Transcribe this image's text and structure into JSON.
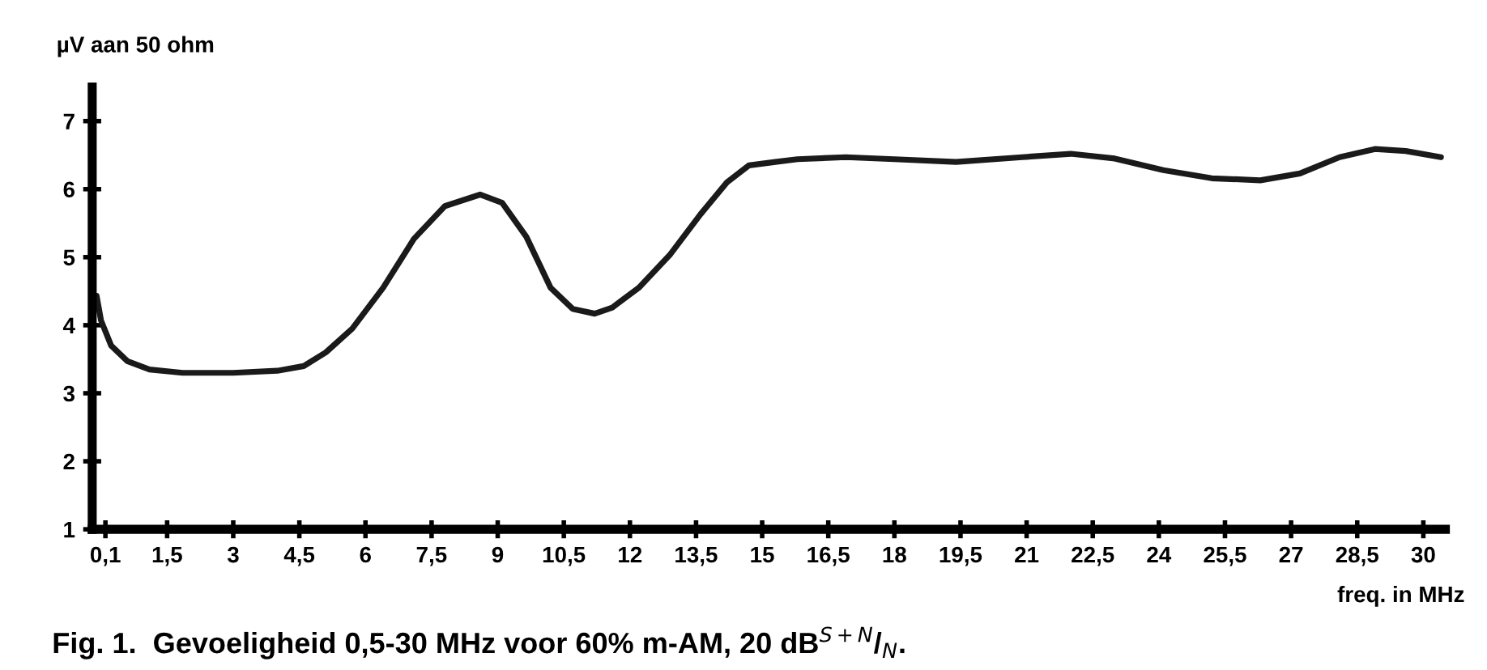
{
  "chart_data": {
    "type": "line",
    "title": "Fig. 1.  Gevoeligheid 0,5-30 MHz voor 60% m-AM, 20 dB$^{S+N}$/$_{N}$.",
    "ylabel": "µV aan 50 ohm",
    "xlabel": "freq. in MHz",
    "series": [
      {
        "color": "#1a1a1a",
        "x": [
          -0.1,
          0,
          0.23,
          0.6,
          1.1,
          1.85,
          3,
          4.0,
          4.6,
          5.1,
          5.7,
          6.4,
          7.1,
          7.8,
          8.6,
          9.1,
          9.65,
          10.2,
          10.7,
          11.2,
          11.6,
          12.2,
          12.9,
          13.6,
          14.2,
          14.7,
          15.3,
          15.8,
          16.9,
          18.0,
          19.4,
          20.9,
          22.0,
          23.0,
          24.1,
          25.2,
          26.3,
          27.2,
          28.1,
          28.9,
          29.6,
          30.4
        ],
        "values": [
          4.43,
          4.07,
          3.7,
          3.47,
          3.35,
          3.3,
          3.3,
          3.33,
          3.4,
          3.6,
          3.95,
          4.55,
          5.27,
          5.75,
          5.92,
          5.8,
          5.3,
          4.55,
          4.24,
          4.17,
          4.26,
          4.55,
          5.03,
          5.63,
          6.1,
          6.35,
          6.4,
          6.44,
          6.47,
          6.44,
          6.4,
          6.47,
          6.52,
          6.45,
          6.28,
          6.16,
          6.13,
          6.23,
          6.47,
          6.59,
          6.56,
          6.47
        ]
      }
    ],
    "xlim": [
      -0.2,
      30.5
    ],
    "ylim": [
      1,
      7.5
    ],
    "xticks": [
      {
        "value": 0.1,
        "label": "0,1"
      },
      {
        "value": 1.5,
        "label": "1,5"
      },
      3,
      {
        "value": 4.5,
        "label": "4,5"
      },
      6,
      {
        "value": 7.5,
        "label": "7,5"
      },
      9,
      {
        "value": 10.5,
        "label": "10,5"
      },
      12,
      {
        "value": 13.5,
        "label": "13,5"
      },
      15,
      {
        "value": 16.5,
        "label": "16,5"
      },
      18,
      {
        "value": 19.5,
        "label": "19,5"
      },
      21,
      {
        "value": 22.5,
        "label": "22,5"
      },
      24,
      {
        "value": 25.5,
        "label": "25,5"
      },
      27,
      {
        "value": 28.5,
        "label": "28,5"
      },
      30
    ],
    "yticks": [
      1,
      2,
      3,
      4,
      5,
      6,
      7
    ],
    "grid": false,
    "legend": false,
    "marker": "none",
    "line_style": "solid"
  }
}
